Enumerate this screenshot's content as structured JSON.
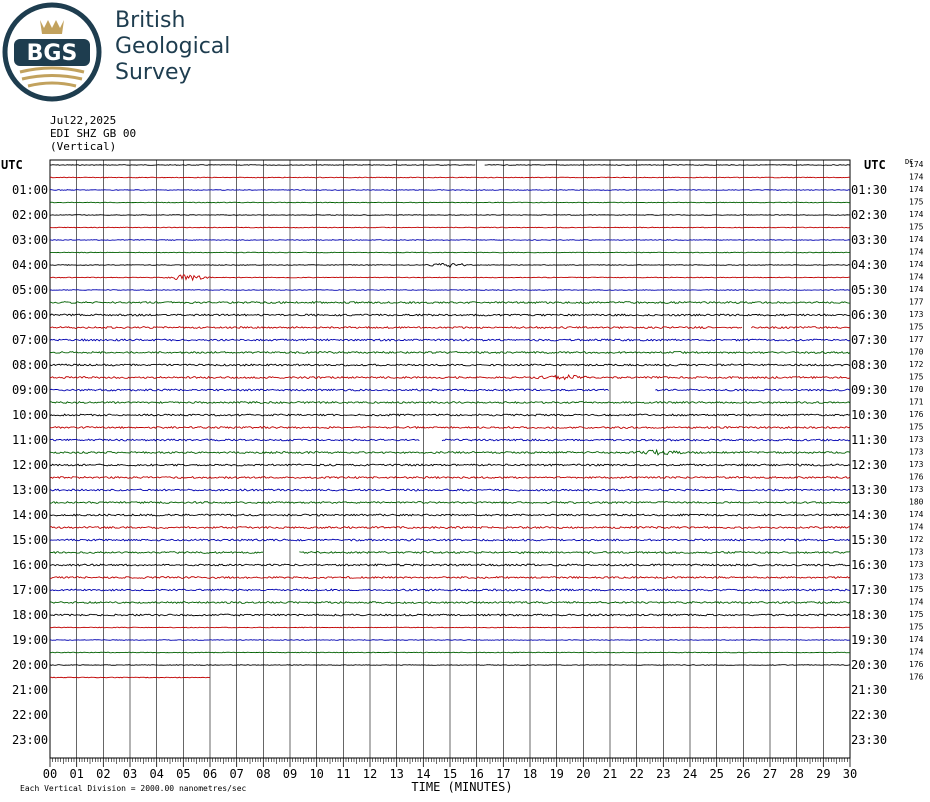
{
  "logo": {
    "abbr": "BGS",
    "name_lines": [
      "British",
      "Geological",
      "Survey"
    ]
  },
  "header": {
    "date": "Jul22,2025",
    "station": "EDI SHZ GB 00",
    "component": "(Vertical)"
  },
  "colors": {
    "black": "#000000",
    "red": "#c00000",
    "blue": "#0000b0",
    "green": "#006000",
    "grid": "#000000",
    "brand": "#1e3d4f",
    "gold": "#c2a25e"
  },
  "chart_data": {
    "type": "line",
    "title": "",
    "xlabel": "TIME (MINUTES)",
    "x_ticks": [
      "00",
      "01",
      "02",
      "03",
      "04",
      "05",
      "06",
      "07",
      "08",
      "09",
      "10",
      "11",
      "12",
      "13",
      "14",
      "15",
      "16",
      "17",
      "18",
      "19",
      "20",
      "21",
      "22",
      "23",
      "24",
      "25",
      "26",
      "27",
      "28",
      "29",
      "30"
    ],
    "xlim": [
      0,
      30
    ],
    "left_axis_title": "UTC",
    "right_axis_title": "UTC",
    "left_hours": [
      "01:00",
      "02:00",
      "03:00",
      "04:00",
      "05:00",
      "06:00",
      "07:00",
      "08:00",
      "09:00",
      "10:00",
      "11:00",
      "12:00",
      "13:00",
      "14:00",
      "15:00",
      "16:00",
      "17:00",
      "18:00",
      "19:00",
      "20:00",
      "21:00",
      "22:00",
      "23:00"
    ],
    "right_hours": [
      "01:30",
      "02:30",
      "03:30",
      "04:30",
      "05:30",
      "06:30",
      "07:30",
      "08:30",
      "09:30",
      "10:30",
      "11:30",
      "12:30",
      "13:30",
      "14:30",
      "15:30",
      "16:30",
      "17:30",
      "18:30",
      "19:30",
      "20:30",
      "21:30",
      "22:30",
      "23:30"
    ],
    "dc_header": "DC",
    "dc_offsets": [
      174,
      174,
      174,
      175,
      174,
      175,
      174,
      174,
      174,
      174,
      174,
      177,
      173,
      175,
      177,
      170,
      172,
      175,
      170,
      171,
      176,
      175,
      173,
      173,
      173,
      176,
      173,
      180,
      174,
      174,
      172,
      173,
      173,
      173,
      175,
      174,
      175,
      175,
      174,
      174,
      176,
      176
    ],
    "trace_color_cycle": [
      "black",
      "red",
      "blue",
      "green"
    ],
    "trace_count": 42,
    "last_trace_minutes": 6,
    "gaps": [
      {
        "trace": 0,
        "from_min": 16.0,
        "to_min": 16.3
      },
      {
        "trace": 13,
        "from_min": 26.0,
        "to_min": 26.3
      },
      {
        "trace": 18,
        "from_min": 21.0,
        "to_min": 22.7
      },
      {
        "trace": 22,
        "from_min": 13.9,
        "to_min": 14.7
      },
      {
        "trace": 31,
        "from_min": 8.0,
        "to_min": 9.3
      }
    ],
    "events": [
      {
        "trace": 9,
        "minute": 5.2,
        "amplitude": 3
      },
      {
        "trace": 8,
        "minute": 15.0,
        "amplitude": 2
      },
      {
        "trace": 17,
        "minute": 19.2,
        "amplitude": 2.5
      },
      {
        "trace": 23,
        "minute": 22.8,
        "amplitude": 2
      }
    ],
    "footer_note": "Each Vertical Division = 2000.00 nanometres/sec"
  }
}
